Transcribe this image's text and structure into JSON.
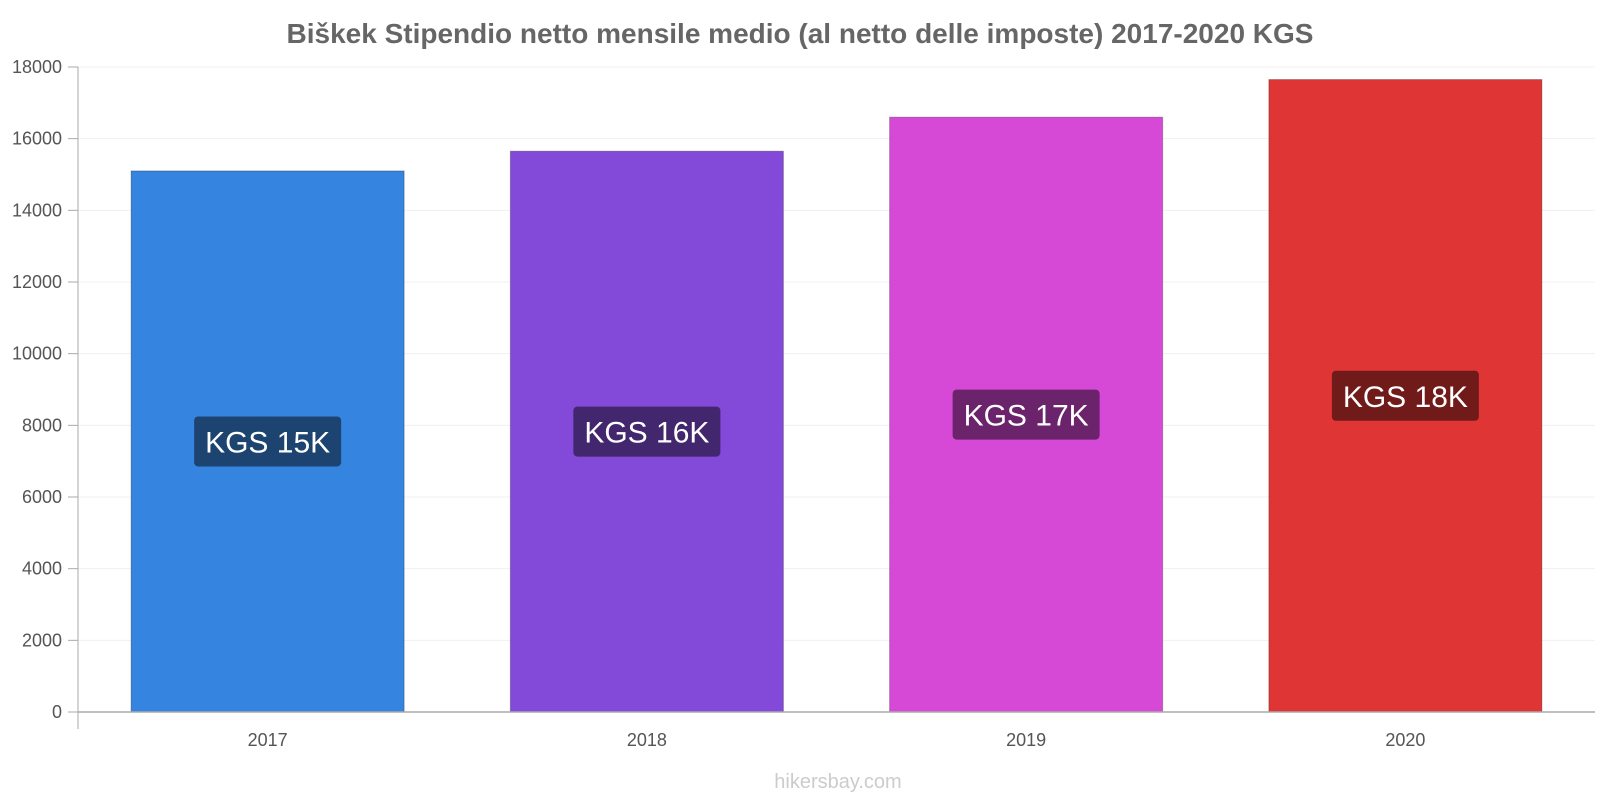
{
  "chart_data": {
    "type": "bar",
    "title": "Biškek Stipendio netto mensile medio (al netto delle imposte) 2017-2020 KGS",
    "xlabel": "",
    "ylabel": "",
    "ylim": [
      0,
      18000
    ],
    "yticks": [
      0,
      2000,
      4000,
      6000,
      8000,
      10000,
      12000,
      14000,
      16000,
      18000
    ],
    "categories": [
      "2017",
      "2018",
      "2019",
      "2020"
    ],
    "values": [
      15100,
      15650,
      16600,
      17650
    ],
    "data_labels": [
      "KGS 15K",
      "KGS 16K",
      "KGS 17K",
      "KGS 18K"
    ],
    "colors": [
      "#3584e0",
      "#8349d8",
      "#d649d6",
      "#e03535"
    ],
    "label_colors": [
      "#1d4470",
      "#42266e",
      "#6b236b",
      "#701a1a"
    ],
    "grid": true,
    "legend": "none"
  },
  "footer": {
    "credit": "hikersbay.com"
  }
}
